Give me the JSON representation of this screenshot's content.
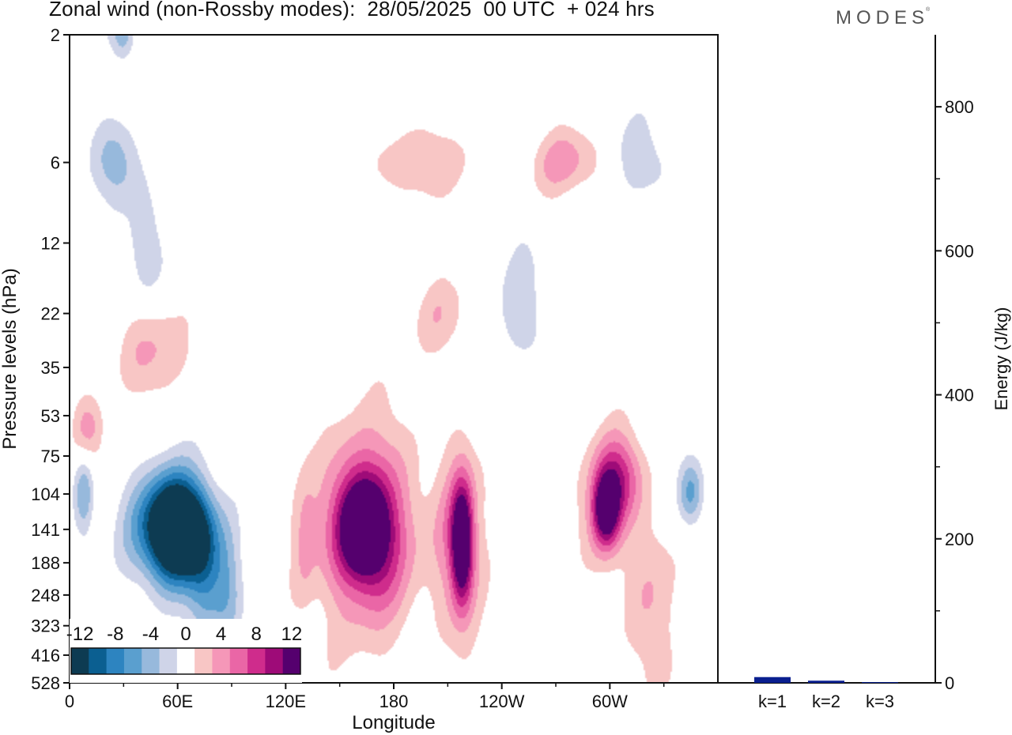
{
  "header": {
    "title": "Zonal wind (non-Rossby modes):  28/05/2025  00 UTC  + 024 hrs",
    "brand": "MODES"
  },
  "chart_data": [
    {
      "type": "heatmap",
      "title": "Zonal wind (non-Rossby modes):  28/05/2025  00 UTC  + 024 hrs",
      "xlabel": "Longitude",
      "ylabel": "Pressure levels (hPa)",
      "x_ticks": [
        "0",
        "60E",
        "120E",
        "180",
        "120W",
        "60W"
      ],
      "y_ticks": [
        "2",
        "6",
        "12",
        "22",
        "35",
        "53",
        "75",
        "104",
        "141",
        "188",
        "248",
        "323",
        "416",
        "528"
      ],
      "colorbar": {
        "labels": [
          "-12",
          "-8",
          "-4",
          "0",
          "4",
          "8",
          "12"
        ],
        "levels": [
          -14,
          -12,
          -10,
          -8,
          -6,
          -4,
          -2,
          2,
          4,
          6,
          8,
          10,
          12,
          14
        ],
        "colors": [
          "#0d3b52",
          "#0b5f91",
          "#2d84c0",
          "#5a9fcf",
          "#97b9dc",
          "#cfd4e8",
          "#ffffff",
          "#f8c6c5",
          "#f597b8",
          "#ea66a6",
          "#cf2c8c",
          "#9e0b78",
          "#55006e"
        ]
      },
      "features": [
        {
          "lon": 62,
          "level": 141,
          "value": -15,
          "lon_width": 20,
          "level_span": 1.3
        },
        {
          "lon": 52,
          "level": 141,
          "value": -12,
          "lon_width": 26,
          "level_span": 1.6
        },
        {
          "lon": 75,
          "level": 188,
          "value": -7,
          "lon_width": 14,
          "level_span": 2.2
        },
        {
          "lon": 88,
          "level": 248,
          "value": -5,
          "lon_width": 12,
          "level_span": 2.0
        },
        {
          "lon": 8,
          "level": 104,
          "value": -6,
          "lon_width": 8,
          "level_span": 1.2
        },
        {
          "lon": 25,
          "level": 6,
          "value": -5,
          "lon_width": 18,
          "level_span": 1.2
        },
        {
          "lon": 30,
          "level": 2,
          "value": -6,
          "lon_width": 10,
          "level_span": 0.8
        },
        {
          "lon": 42,
          "level": 12,
          "value": -5,
          "lon_width": 12,
          "level_span": 1.6
        },
        {
          "lon": 164,
          "level": 141,
          "value": 11,
          "lon_width": 18,
          "level_span": 1.3
        },
        {
          "lon": 164,
          "level": 141,
          "value": 8,
          "lon_width": 30,
          "level_span": 2.2
        },
        {
          "lon": 168,
          "level": 141,
          "value": 4,
          "lon_width": 48,
          "level_span": 3.6
        },
        {
          "lon": 218,
          "level": 160,
          "value": 13,
          "lon_width": 8,
          "level_span": 1.6
        },
        {
          "lon": 218,
          "level": 160,
          "value": 6,
          "lon_width": 20,
          "level_span": 2.8
        },
        {
          "lon": 298,
          "level": 120,
          "value": 11,
          "lon_width": 10,
          "level_span": 1.0
        },
        {
          "lon": 298,
          "level": 120,
          "value": 5,
          "lon_width": 22,
          "level_span": 2.0
        },
        {
          "lon": 305,
          "level": 90,
          "value": 7,
          "lon_width": 18,
          "level_span": 1.2
        },
        {
          "lon": 282,
          "level": 6,
          "value": 6,
          "lon_width": 36,
          "level_span": 1.0
        },
        {
          "lon": 195,
          "level": 6,
          "value": 4,
          "lon_width": 40,
          "level_span": 1.0
        },
        {
          "lon": 45,
          "level": 30,
          "value": 4,
          "lon_width": 34,
          "level_span": 1.4
        },
        {
          "lon": 10,
          "level": 60,
          "value": 5,
          "lon_width": 12,
          "level_span": 1.0
        },
        {
          "lon": 325,
          "level": 300,
          "value": 4,
          "lon_width": 18,
          "level_span": 3.0
        },
        {
          "lon": 205,
          "level": 22,
          "value": 3,
          "lon_width": 26,
          "level_span": 1.2
        },
        {
          "lon": 345,
          "level": 104,
          "value": -7,
          "lon_width": 10,
          "level_span": 1.0
        },
        {
          "lon": 310,
          "level": 6,
          "value": -4,
          "lon_width": 40,
          "level_span": 1.2
        },
        {
          "lon": 130,
          "level": 160,
          "value": 3,
          "lon_width": 10,
          "level_span": 2.2
        },
        {
          "lon": 250,
          "level": 20,
          "value": -3,
          "lon_width": 20,
          "level_span": 2.0
        }
      ]
    },
    {
      "type": "bar",
      "ylabel": "Energy (J/kg)",
      "categories": [
        "k=1",
        "k=2",
        "k=3"
      ],
      "values": [
        8,
        3,
        1
      ],
      "ylim": [
        0,
        900
      ],
      "y_ticks": [
        "0",
        "200",
        "400",
        "600",
        "800"
      ],
      "bar_color": "#0a1f8f"
    }
  ]
}
